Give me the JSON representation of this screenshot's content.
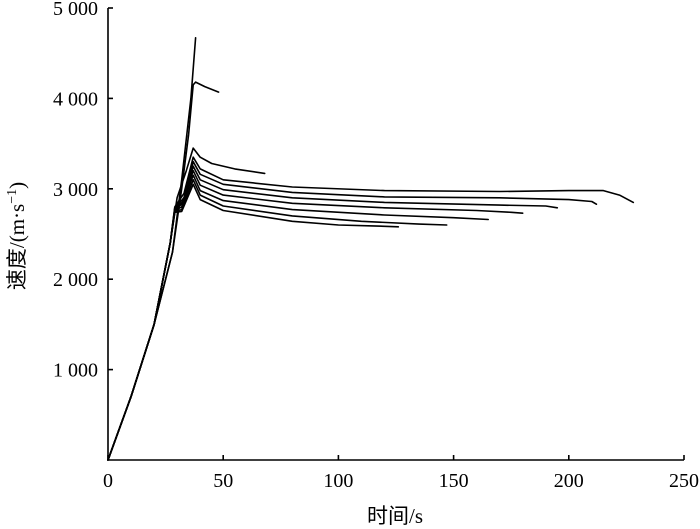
{
  "chart_data": {
    "type": "line",
    "xlabel": "时间/s",
    "ylabel_main": "速度/(m·s",
    "ylabel_sup": "−1",
    "ylabel_close": ")",
    "xlim": [
      0,
      250
    ],
    "ylim": [
      0,
      5000
    ],
    "xticks": [
      {
        "value": 0,
        "label": "0"
      },
      {
        "value": 50,
        "label": "50"
      },
      {
        "value": 100,
        "label": "100"
      },
      {
        "value": 150,
        "label": "150"
      },
      {
        "value": 200,
        "label": "200"
      },
      {
        "value": 250,
        "label": "250"
      }
    ],
    "yticks": [
      {
        "value": 1000,
        "label": "1 000"
      },
      {
        "value": 2000,
        "label": "2 000"
      },
      {
        "value": 3000,
        "label": "3 000"
      },
      {
        "value": 4000,
        "label": "4 000"
      },
      {
        "value": 5000,
        "label": "5 000"
      }
    ],
    "grid": false,
    "series": [
      {
        "values": [
          [
            0,
            0
          ],
          [
            10,
            700
          ],
          [
            20,
            1500
          ],
          [
            28,
            2300
          ],
          [
            32,
            3100
          ],
          [
            36,
            4000
          ],
          [
            38,
            4670
          ]
        ]
      },
      {
        "values": [
          [
            0,
            0
          ],
          [
            10,
            700
          ],
          [
            20,
            1500
          ],
          [
            28,
            2300
          ],
          [
            32,
            3000
          ],
          [
            35,
            3600
          ],
          [
            37,
            4150
          ],
          [
            38,
            4180
          ],
          [
            42,
            4130
          ],
          [
            48,
            4070
          ]
        ]
      },
      {
        "values": [
          [
            0,
            0
          ],
          [
            10,
            700
          ],
          [
            20,
            1500
          ],
          [
            27,
            2400
          ],
          [
            30,
            2900
          ],
          [
            34,
            3200
          ],
          [
            37,
            3450
          ],
          [
            40,
            3350
          ],
          [
            45,
            3280
          ],
          [
            55,
            3220
          ],
          [
            68,
            3170
          ]
        ]
      },
      {
        "values": [
          [
            0,
            0
          ],
          [
            10,
            700
          ],
          [
            20,
            1500
          ],
          [
            27,
            2400
          ],
          [
            29,
            2800
          ],
          [
            33,
            2950
          ],
          [
            37,
            3350
          ],
          [
            40,
            3220
          ],
          [
            50,
            3100
          ],
          [
            80,
            3020
          ],
          [
            120,
            2980
          ],
          [
            170,
            2970
          ],
          [
            200,
            2980
          ],
          [
            215,
            2980
          ],
          [
            222,
            2930
          ],
          [
            228,
            2850
          ]
        ]
      },
      {
        "values": [
          [
            0,
            0
          ],
          [
            10,
            700
          ],
          [
            20,
            1500
          ],
          [
            27,
            2400
          ],
          [
            29,
            2790
          ],
          [
            33,
            2900
          ],
          [
            37,
            3300
          ],
          [
            40,
            3160
          ],
          [
            50,
            3050
          ],
          [
            80,
            2960
          ],
          [
            120,
            2910
          ],
          [
            170,
            2900
          ],
          [
            200,
            2880
          ],
          [
            210,
            2860
          ],
          [
            212,
            2830
          ]
        ]
      },
      {
        "values": [
          [
            0,
            0
          ],
          [
            10,
            700
          ],
          [
            20,
            1500
          ],
          [
            27,
            2400
          ],
          [
            29,
            2780
          ],
          [
            33,
            2870
          ],
          [
            37,
            3250
          ],
          [
            40,
            3100
          ],
          [
            50,
            2990
          ],
          [
            80,
            2900
          ],
          [
            120,
            2850
          ],
          [
            170,
            2820
          ],
          [
            190,
            2810
          ],
          [
            195,
            2790
          ]
        ]
      },
      {
        "values": [
          [
            0,
            0
          ],
          [
            10,
            700
          ],
          [
            20,
            1500
          ],
          [
            27,
            2400
          ],
          [
            29,
            2770
          ],
          [
            32,
            2830
          ],
          [
            37,
            3200
          ],
          [
            40,
            3040
          ],
          [
            50,
            2930
          ],
          [
            80,
            2840
          ],
          [
            120,
            2790
          ],
          [
            160,
            2760
          ],
          [
            175,
            2740
          ],
          [
            180,
            2730
          ]
        ]
      },
      {
        "values": [
          [
            0,
            0
          ],
          [
            10,
            700
          ],
          [
            20,
            1500
          ],
          [
            27,
            2400
          ],
          [
            29,
            2760
          ],
          [
            32,
            2800
          ],
          [
            37,
            3150
          ],
          [
            40,
            2980
          ],
          [
            50,
            2870
          ],
          [
            80,
            2770
          ],
          [
            120,
            2710
          ],
          [
            150,
            2680
          ],
          [
            165,
            2660
          ]
        ]
      },
      {
        "values": [
          [
            0,
            0
          ],
          [
            10,
            700
          ],
          [
            20,
            1500
          ],
          [
            27,
            2400
          ],
          [
            29,
            2750
          ],
          [
            32,
            2770
          ],
          [
            37,
            3100
          ],
          [
            40,
            2930
          ],
          [
            50,
            2810
          ],
          [
            80,
            2700
          ],
          [
            110,
            2640
          ],
          [
            135,
            2610
          ],
          [
            147,
            2600
          ]
        ]
      },
      {
        "values": [
          [
            0,
            0
          ],
          [
            10,
            700
          ],
          [
            20,
            1500
          ],
          [
            27,
            2400
          ],
          [
            29,
            2740
          ],
          [
            32,
            2750
          ],
          [
            37,
            3050
          ],
          [
            40,
            2880
          ],
          [
            50,
            2760
          ],
          [
            80,
            2640
          ],
          [
            100,
            2600
          ],
          [
            115,
            2590
          ],
          [
            126,
            2580
          ]
        ]
      }
    ]
  }
}
